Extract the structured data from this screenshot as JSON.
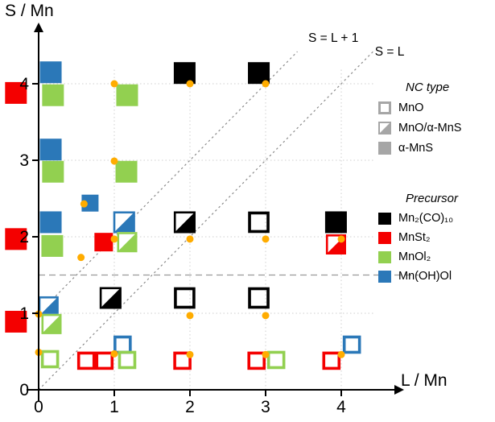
{
  "axes": {
    "y_label": "S / Mn",
    "x_label": "L / Mn"
  },
  "chart_data": {
    "type": "scatter",
    "x_ticks": [
      0,
      1,
      2,
      3,
      4
    ],
    "y_ticks": [
      0,
      1,
      2,
      3,
      4
    ],
    "xlim": [
      -0.45,
      4.7
    ],
    "ylim": [
      0,
      4.7
    ],
    "grid": "dotted",
    "reference_lines": [
      {
        "type": "diagonal-dotted",
        "label": "S = L + 1",
        "from": {
          "x": 0,
          "y": 1
        },
        "to": {
          "x": 3.42,
          "y": 4.42
        },
        "label_at": {
          "x": 3.5,
          "y": 4.6
        }
      },
      {
        "type": "diagonal-dotted",
        "label": "S = L",
        "from": {
          "x": 0,
          "y": 0
        },
        "to": {
          "x": 4.42,
          "y": 4.42
        },
        "label_at": {
          "x": 4.38,
          "y": 4.42
        }
      },
      {
        "type": "horizontal-dashed",
        "label": "",
        "y": 1.5
      }
    ],
    "markers": [
      {
        "x": 0.16,
        "y": 4.15,
        "color": "blue",
        "nc": "full",
        "size": 27
      },
      {
        "x": -0.3,
        "y": 3.88,
        "color": "red",
        "nc": "full",
        "size": 27
      },
      {
        "x": 0.19,
        "y": 3.85,
        "color": "green",
        "nc": "full",
        "size": 27
      },
      {
        "x": 1.17,
        "y": 3.85,
        "color": "green",
        "nc": "full",
        "size": 27
      },
      {
        "x": 1.93,
        "y": 4.14,
        "color": "black",
        "nc": "full",
        "size": 27
      },
      {
        "x": 2.91,
        "y": 4.14,
        "color": "black",
        "nc": "full",
        "size": 27
      },
      {
        "x": 0.16,
        "y": 3.14,
        "color": "blue",
        "nc": "full",
        "size": 27
      },
      {
        "x": 0.19,
        "y": 2.85,
        "color": "green",
        "nc": "full",
        "size": 27
      },
      {
        "x": 1.16,
        "y": 2.85,
        "color": "green",
        "nc": "full",
        "size": 27
      },
      {
        "x": 0.68,
        "y": 2.44,
        "color": "blue",
        "nc": "full",
        "size": 21
      },
      {
        "x": -0.3,
        "y": 1.97,
        "color": "red",
        "nc": "full",
        "size": 27
      },
      {
        "x": 0.16,
        "y": 2.19,
        "color": "blue",
        "nc": "full",
        "size": 27
      },
      {
        "x": 0.18,
        "y": 1.88,
        "color": "green",
        "nc": "full",
        "size": 27
      },
      {
        "x": 0.86,
        "y": 1.93,
        "color": "red",
        "nc": "full",
        "size": 23
      },
      {
        "x": 1.13,
        "y": 2.19,
        "color": "blue",
        "nc": "half",
        "size": 27
      },
      {
        "x": 1.17,
        "y": 1.93,
        "color": "green",
        "nc": "half",
        "size": 25
      },
      {
        "x": 1.93,
        "y": 2.19,
        "color": "black",
        "nc": "half",
        "size": 27
      },
      {
        "x": 2.91,
        "y": 2.19,
        "color": "black",
        "nc": "open",
        "size": 27
      },
      {
        "x": 3.93,
        "y": 2.19,
        "color": "black",
        "nc": "full",
        "size": 27
      },
      {
        "x": 3.93,
        "y": 1.9,
        "color": "red",
        "nc": "half",
        "size": 25
      },
      {
        "x": -0.3,
        "y": 0.89,
        "color": "red",
        "nc": "full",
        "size": 27
      },
      {
        "x": 0.13,
        "y": 1.09,
        "color": "blue",
        "nc": "half",
        "size": 25
      },
      {
        "x": 0.17,
        "y": 0.86,
        "color": "green",
        "nc": "half",
        "size": 25
      },
      {
        "x": 0.95,
        "y": 1.2,
        "color": "black",
        "nc": "half",
        "size": 27
      },
      {
        "x": 1.93,
        "y": 1.2,
        "color": "black",
        "nc": "open",
        "size": 27
      },
      {
        "x": 2.91,
        "y": 1.2,
        "color": "black",
        "nc": "open",
        "size": 27
      },
      {
        "x": 0.15,
        "y": 0.4,
        "color": "green",
        "nc": "open",
        "size": 23
      },
      {
        "x": 0.63,
        "y": 0.38,
        "color": "red",
        "nc": "open",
        "size": 23
      },
      {
        "x": 0.87,
        "y": 0.38,
        "color": "red",
        "nc": "open",
        "size": 23
      },
      {
        "x": 1.11,
        "y": 0.59,
        "color": "blue",
        "nc": "open",
        "size": 23
      },
      {
        "x": 1.17,
        "y": 0.39,
        "color": "green",
        "nc": "open",
        "size": 23
      },
      {
        "x": 1.9,
        "y": 0.38,
        "color": "red",
        "nc": "open",
        "size": 23
      },
      {
        "x": 2.88,
        "y": 0.38,
        "color": "red",
        "nc": "open",
        "size": 23
      },
      {
        "x": 3.14,
        "y": 0.39,
        "color": "green",
        "nc": "open",
        "size": 23
      },
      {
        "x": 3.87,
        "y": 0.38,
        "color": "red",
        "nc": "open",
        "size": 23
      },
      {
        "x": 4.14,
        "y": 0.59,
        "color": "blue",
        "nc": "open",
        "size": 23
      }
    ],
    "dots": [
      {
        "x": 0,
        "y": 0.49
      },
      {
        "x": 0,
        "y": 0.99
      },
      {
        "x": 1,
        "y": 0.47
      },
      {
        "x": 2,
        "y": 0.46
      },
      {
        "x": 3,
        "y": 0.46
      },
      {
        "x": 4,
        "y": 0.46
      },
      {
        "x": 2,
        "y": 0.97
      },
      {
        "x": 3,
        "y": 0.97
      },
      {
        "x": 0.56,
        "y": 1.73
      },
      {
        "x": 1,
        "y": 1.97
      },
      {
        "x": 2,
        "y": 1.97
      },
      {
        "x": 3,
        "y": 1.97
      },
      {
        "x": 4,
        "y": 1.97
      },
      {
        "x": 0.6,
        "y": 2.43
      },
      {
        "x": 1,
        "y": 2.99
      },
      {
        "x": 1,
        "y": 4.0
      },
      {
        "x": 2,
        "y": 4.0
      },
      {
        "x": 3,
        "y": 4.0
      }
    ]
  },
  "legend": {
    "nc_type": {
      "header": "NC type",
      "items": [
        {
          "label": "MnO",
          "fill": "open"
        },
        {
          "label": "MnO/α-MnS",
          "fill": "half"
        },
        {
          "label": "α-MnS",
          "fill": "full"
        }
      ]
    },
    "precursor": {
      "header": "Precursor",
      "items": [
        {
          "label": "Mn₂(CO)₁₀",
          "color": "#000000"
        },
        {
          "label": "MnSt₂",
          "color": "#f40000"
        },
        {
          "label": "MnOl₂",
          "color": "#92d050"
        },
        {
          "label": "Mn(OH)Ol",
          "color": "#2b78b8"
        }
      ]
    }
  },
  "colors": {
    "black": "#000000",
    "red": "#f40000",
    "green": "#92d050",
    "blue": "#2b78b8",
    "dot": "#ffac00",
    "grid": "#cfcfcf",
    "ref_line": "#8a8a8a",
    "legend_gray": "#a6a6a6"
  }
}
